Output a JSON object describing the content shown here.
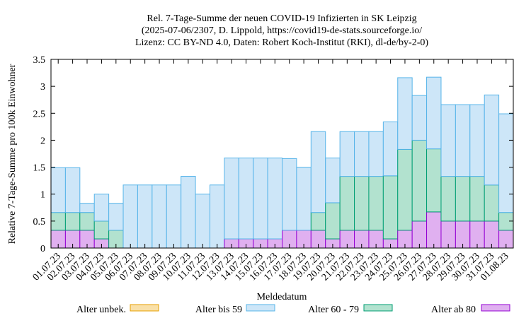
{
  "colors": {
    "unbek_fill": "#f9e0a8",
    "unbek_stroke": "#e69f00",
    "u59_fill": "#cde6f8",
    "u59_stroke": "#56b4e9",
    "a6079_fill": "#b2e2cf",
    "a6079_stroke": "#009e73",
    "a80_fill": "#e0b0f0",
    "a80_stroke": "#9400d3"
  },
  "chart_data": {
    "type": "bar",
    "stacked": true,
    "title": "Rel. 7-Tage-Summe der neuen COVID-19 Infizierten in SK Leipzig",
    "subtitle_lines": [
      "(2025-07-06/2307, D. Lippold, https://covid19-de-stats.sourceforge.io/",
      "Lizenz: CC BY-ND 4.0, Daten: Robert Koch-Institut (RKI), dl-de/by-2-0)"
    ],
    "xlabel": "Meldedatum",
    "ylabel": "Relative 7-Tage-Summe pro 100k Einwohner",
    "ylim": [
      0,
      3.5
    ],
    "yticks": [
      "0",
      "0.5",
      "1",
      "1.5",
      "2",
      "2.5",
      "3",
      "3.5"
    ],
    "grid": false,
    "legend_position": "bottom",
    "categories": [
      "01.07.23",
      "02.07.23",
      "03.07.23",
      "04.07.23",
      "05.07.23",
      "06.07.23",
      "07.07.23",
      "08.07.23",
      "09.07.23",
      "10.07.23",
      "11.07.23",
      "12.07.23",
      "13.07.23",
      "14.07.23",
      "15.07.23",
      "16.07.23",
      "17.07.23",
      "18.07.23",
      "19.07.23",
      "20.07.23",
      "21.07.23",
      "22.07.23",
      "23.07.23",
      "24.07.23",
      "25.07.23",
      "26.07.23",
      "27.07.23",
      "28.07.23",
      "29.07.23",
      "30.07.23",
      "31.07.23",
      "01.08.23"
    ],
    "series": [
      {
        "name": "Alter unbek.",
        "color_key": "unbek",
        "values": [
          0,
          0,
          0,
          0,
          0,
          0,
          0,
          0,
          0,
          0,
          0,
          0,
          0,
          0,
          0,
          0,
          0,
          0,
          0,
          0,
          0,
          0,
          0,
          0,
          0,
          0,
          0,
          0,
          0,
          0,
          0,
          0
        ]
      },
      {
        "name": "Alter bis 59",
        "color_key": "u59",
        "values": [
          0.83,
          0.83,
          0.17,
          0.5,
          0.5,
          1.17,
          1.17,
          1.17,
          1.17,
          1.33,
          1.0,
          1.17,
          1.5,
          1.5,
          1.5,
          1.5,
          1.33,
          1.17,
          1.5,
          0.83,
          0.83,
          0.83,
          0.83,
          1.0,
          1.33,
          0.83,
          1.33,
          1.33,
          1.33,
          1.33,
          1.67,
          1.83
        ]
      },
      {
        "name": "Alter 60 - 79",
        "color_key": "a6079",
        "values": [
          0.33,
          0.33,
          0.33,
          0.33,
          0.33,
          0,
          0,
          0,
          0,
          0,
          0,
          0,
          0,
          0,
          0,
          0,
          0,
          0,
          0.33,
          0.67,
          1.0,
          1.0,
          1.0,
          1.17,
          1.5,
          1.5,
          1.17,
          0.83,
          0.83,
          0.83,
          0.67,
          0.33
        ]
      },
      {
        "name": "Alter ab 80",
        "color_key": "a80",
        "values": [
          0.33,
          0.33,
          0.33,
          0.17,
          0,
          0,
          0,
          0,
          0,
          0,
          0,
          0,
          0.17,
          0.17,
          0.17,
          0.17,
          0.33,
          0.33,
          0.33,
          0.17,
          0.33,
          0.33,
          0.33,
          0.17,
          0.33,
          0.5,
          0.67,
          0.5,
          0.5,
          0.5,
          0.5,
          0.33
        ]
      }
    ]
  }
}
